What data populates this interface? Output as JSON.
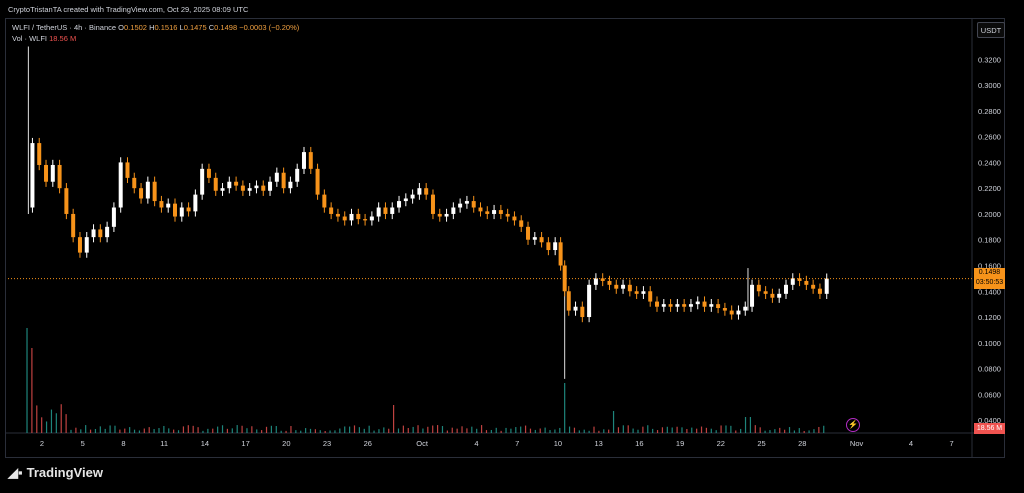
{
  "header": {
    "attribution": "CryptoTristanTA created with TradingView.com, Oct 29, 2025 08:09 UTC"
  },
  "legend": {
    "symbol": "WLFI / TetherUS · 4h · Binance",
    "o_label": "O",
    "o_value": "0.1502",
    "h_label": "H",
    "h_value": "0.1516",
    "l_label": "L",
    "l_value": "0.1475",
    "c_label": "C",
    "c_value": "0.1498",
    "change": "−0.0003 (−0.20%)",
    "vol_label": "Vol · WLFI",
    "vol_value": "18.56 M"
  },
  "currency_label": "USDT",
  "current_price": {
    "price": "0.1498",
    "countdown": "03:50:53"
  },
  "volume_tag": "18.56 M",
  "branding": {
    "logo_text": "TradingView"
  },
  "colors": {
    "up": "#ffffff",
    "down": "#f7931a",
    "price_line": "#f7931a",
    "vol_down": "#ef5350",
    "vol_up": "#26a69a"
  },
  "chart_data": {
    "type": "candlestick",
    "timeframe": "4h",
    "y_ticks": [
      "0.3200",
      "0.3000",
      "0.2800",
      "0.2600",
      "0.2400",
      "0.2200",
      "0.2000",
      "0.1800",
      "0.1600",
      "0.1400",
      "0.1200",
      "0.1000",
      "0.0800",
      "0.0600",
      "0.0400"
    ],
    "ylim": [
      0.03,
      0.335
    ],
    "x_ticks": [
      "2",
      "5",
      "8",
      "11",
      "14",
      "17",
      "20",
      "23",
      "26",
      "Oct",
      "4",
      "7",
      "10",
      "13",
      "16",
      "19",
      "22",
      "25",
      "28",
      "Nov",
      "4",
      "7"
    ],
    "x_tick_days": [
      2,
      5,
      8,
      11,
      14,
      17,
      20,
      23,
      26,
      30,
      34,
      37,
      40,
      43,
      46,
      49,
      52,
      55,
      58,
      62,
      66,
      69
    ],
    "xlim": [
      -0.5,
      70.5
    ],
    "price_path": [
      [
        1.0,
        0.205
      ],
      [
        1.3,
        0.255
      ],
      [
        1.8,
        0.238
      ],
      [
        2.3,
        0.225
      ],
      [
        2.8,
        0.238
      ],
      [
        3.3,
        0.22
      ],
      [
        3.8,
        0.2
      ],
      [
        4.3,
        0.182
      ],
      [
        4.8,
        0.17
      ],
      [
        5.3,
        0.182
      ],
      [
        5.8,
        0.188
      ],
      [
        6.3,
        0.182
      ],
      [
        6.8,
        0.19
      ],
      [
        7.3,
        0.205
      ],
      [
        7.8,
        0.24
      ],
      [
        8.3,
        0.228
      ],
      [
        8.8,
        0.22
      ],
      [
        9.3,
        0.212
      ],
      [
        9.8,
        0.225
      ],
      [
        10.3,
        0.21
      ],
      [
        10.8,
        0.205
      ],
      [
        11.3,
        0.208
      ],
      [
        11.8,
        0.198
      ],
      [
        12.3,
        0.205
      ],
      [
        12.8,
        0.202
      ],
      [
        13.3,
        0.215
      ],
      [
        13.8,
        0.235
      ],
      [
        14.3,
        0.228
      ],
      [
        14.8,
        0.218
      ],
      [
        15.3,
        0.22
      ],
      [
        15.8,
        0.225
      ],
      [
        16.3,
        0.222
      ],
      [
        16.8,
        0.218
      ],
      [
        17.3,
        0.22
      ],
      [
        17.8,
        0.222
      ],
      [
        18.3,
        0.218
      ],
      [
        18.8,
        0.225
      ],
      [
        19.3,
        0.232
      ],
      [
        19.8,
        0.22
      ],
      [
        20.3,
        0.225
      ],
      [
        20.8,
        0.235
      ],
      [
        21.3,
        0.248
      ],
      [
        21.8,
        0.235
      ],
      [
        22.3,
        0.215
      ],
      [
        22.8,
        0.205
      ],
      [
        23.3,
        0.2
      ],
      [
        23.8,
        0.198
      ],
      [
        24.3,
        0.195
      ],
      [
        24.8,
        0.2
      ],
      [
        25.3,
        0.196
      ],
      [
        25.8,
        0.195
      ],
      [
        26.3,
        0.198
      ],
      [
        26.8,
        0.205
      ],
      [
        27.3,
        0.2
      ],
      [
        27.8,
        0.205
      ],
      [
        28.3,
        0.21
      ],
      [
        28.8,
        0.212
      ],
      [
        29.3,
        0.215
      ],
      [
        29.8,
        0.22
      ],
      [
        30.3,
        0.215
      ],
      [
        30.8,
        0.2
      ],
      [
        31.3,
        0.198
      ],
      [
        31.8,
        0.2
      ],
      [
        32.3,
        0.205
      ],
      [
        32.8,
        0.208
      ],
      [
        33.3,
        0.21
      ],
      [
        33.8,
        0.205
      ],
      [
        34.3,
        0.202
      ],
      [
        34.8,
        0.2
      ],
      [
        35.3,
        0.203
      ],
      [
        35.8,
        0.2
      ],
      [
        36.3,
        0.198
      ],
      [
        36.8,
        0.195
      ],
      [
        37.3,
        0.19
      ],
      [
        37.8,
        0.18
      ],
      [
        38.3,
        0.182
      ],
      [
        38.8,
        0.178
      ],
      [
        39.3,
        0.172
      ],
      [
        39.8,
        0.178
      ],
      [
        40.2,
        0.16
      ],
      [
        40.5,
        0.14
      ],
      [
        40.8,
        0.125
      ],
      [
        41.3,
        0.128
      ],
      [
        41.8,
        0.12
      ],
      [
        42.3,
        0.145
      ],
      [
        42.8,
        0.15
      ],
      [
        43.3,
        0.148
      ],
      [
        43.8,
        0.145
      ],
      [
        44.3,
        0.142
      ],
      [
        44.8,
        0.145
      ],
      [
        45.3,
        0.14
      ],
      [
        45.8,
        0.138
      ],
      [
        46.3,
        0.14
      ],
      [
        46.8,
        0.132
      ],
      [
        47.3,
        0.128
      ],
      [
        47.8,
        0.13
      ],
      [
        48.3,
        0.128
      ],
      [
        48.8,
        0.13
      ],
      [
        49.3,
        0.128
      ],
      [
        49.8,
        0.13
      ],
      [
        50.3,
        0.132
      ],
      [
        50.8,
        0.128
      ],
      [
        51.3,
        0.13
      ],
      [
        51.8,
        0.127
      ],
      [
        52.3,
        0.125
      ],
      [
        52.8,
        0.122
      ],
      [
        53.3,
        0.125
      ],
      [
        53.8,
        0.128
      ],
      [
        54.3,
        0.145
      ],
      [
        54.8,
        0.14
      ],
      [
        55.3,
        0.138
      ],
      [
        55.8,
        0.135
      ],
      [
        56.3,
        0.138
      ],
      [
        56.8,
        0.145
      ],
      [
        57.3,
        0.15
      ],
      [
        57.8,
        0.148
      ],
      [
        58.3,
        0.145
      ],
      [
        58.8,
        0.142
      ],
      [
        59.3,
        0.138
      ],
      [
        59.8,
        0.1498
      ]
    ],
    "wicks": [
      {
        "day": 1.0,
        "high": 0.33,
        "low": 0.2
      },
      {
        "day": 40.5,
        "high": 0.16,
        "low": 0.072
      },
      {
        "day": 54.0,
        "high": 0.158,
        "low": 0.125
      }
    ],
    "volume_series": {
      "name": "Vol · WLFI",
      "last": 18.56
    },
    "volume_peaks": [
      [
        1.0,
        105
      ],
      [
        1.3,
        85
      ],
      [
        40.5,
        50
      ],
      [
        28,
        28
      ],
      [
        44,
        22
      ],
      [
        54,
        16
      ]
    ]
  }
}
